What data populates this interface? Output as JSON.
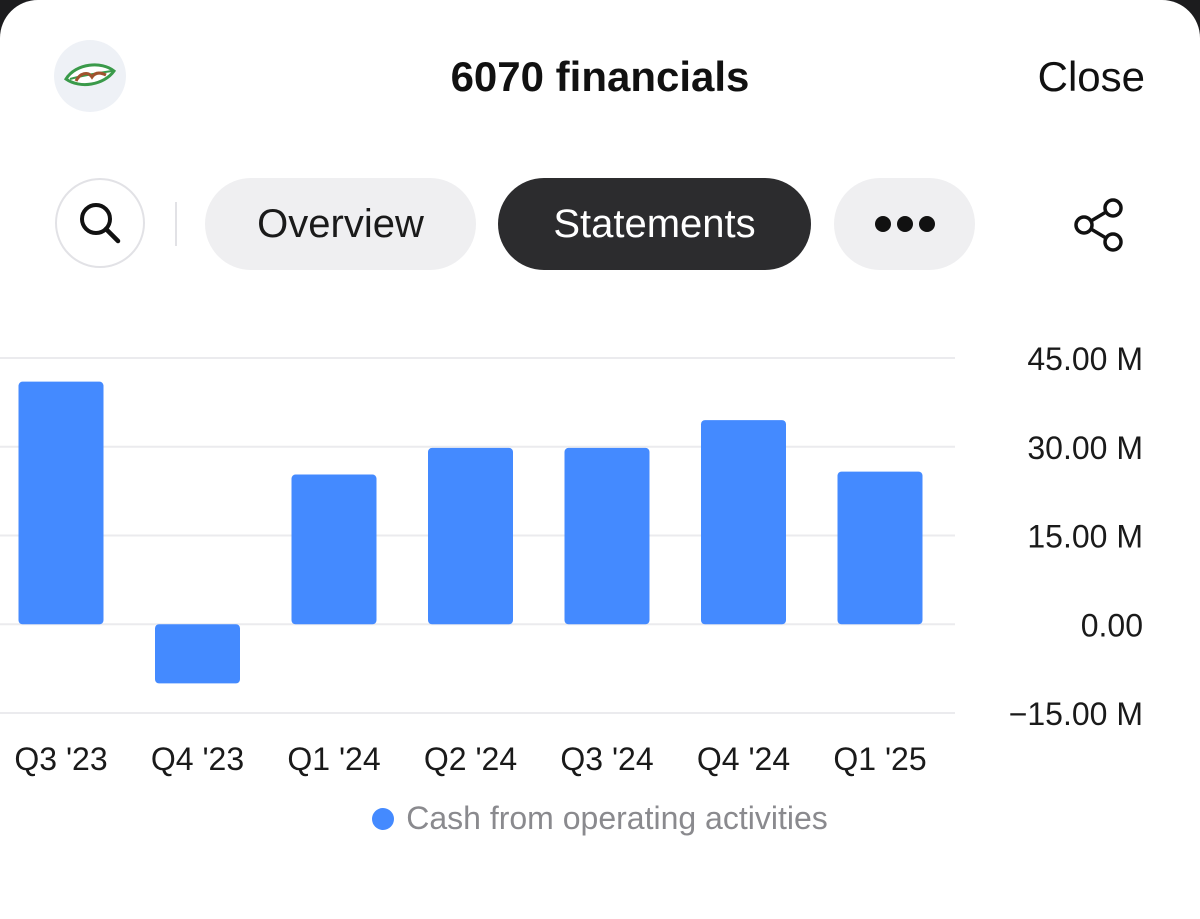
{
  "header": {
    "title": "6070 financials",
    "close_label": "Close",
    "logo_icon": "leaf-logo-icon"
  },
  "toolbar": {
    "search_icon": "search-icon",
    "tabs": [
      {
        "label": "Overview",
        "selected": false
      },
      {
        "label": "Statements",
        "selected": true
      }
    ],
    "more_icon": "more-dots-icon",
    "share_icon": "share-icon"
  },
  "colors": {
    "bar": "#448aff",
    "selected_tab_bg": "#2c2c2e",
    "tab_bg": "#efeff1"
  },
  "chart_data": {
    "type": "bar",
    "categories": [
      "Q3 '23",
      "Q4 '23",
      "Q1 '24",
      "Q2 '24",
      "Q3 '24",
      "Q4 '24",
      "Q1 '25"
    ],
    "series": [
      {
        "name": "Cash from operating activities",
        "values": [
          41.0,
          -10.0,
          25.3,
          29.8,
          29.8,
          34.5,
          25.8
        ]
      }
    ],
    "ylim": [
      -15,
      45
    ],
    "yticks": [
      45,
      30,
      15,
      0,
      -15
    ],
    "ytick_labels": [
      "45.00 M",
      "30.00 M",
      "15.00 M",
      "0.00",
      "−15.00 M"
    ],
    "grid": true,
    "axis_position": "right",
    "legend_position": "bottom"
  }
}
